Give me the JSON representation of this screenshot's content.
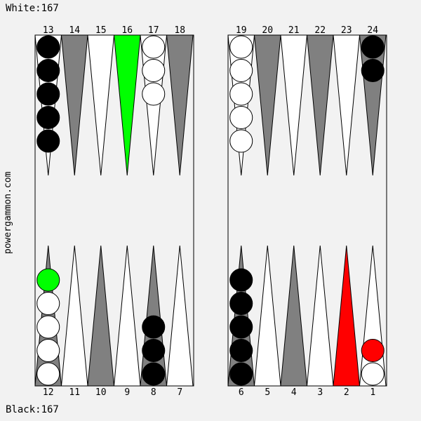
{
  "score_white": "White:167",
  "score_black": "Black:167",
  "site": "powergammon.com",
  "colors": {
    "board_bg": "#f2f2f2",
    "dark_point": "#808080",
    "light_point": "#ffffff",
    "highlight_from": "#00ff00",
    "highlight_to": "#ff0000",
    "checker_white": "#ffffff",
    "checker_black": "#000000"
  },
  "highlight": {
    "from_point": "16",
    "to_point": "2",
    "white_checker_moved_from_point": "12",
    "white_checker_moved_to_point": "1"
  },
  "points_top": [
    "13",
    "14",
    "15",
    "16",
    "17",
    "18",
    "19",
    "20",
    "21",
    "22",
    "23",
    "24"
  ],
  "points_bottom": [
    "12",
    "11",
    "10",
    "9",
    "8",
    "7",
    "6",
    "5",
    "4",
    "3",
    "2",
    "1"
  ],
  "checkers": [
    {
      "point": "13",
      "color": "black",
      "count": 5
    },
    {
      "point": "17",
      "color": "white",
      "count": 3
    },
    {
      "point": "19",
      "color": "white",
      "count": 5
    },
    {
      "point": "24",
      "color": "black",
      "count": 2
    },
    {
      "point": "12",
      "color": "white",
      "count": 5,
      "top_checker_highlight": "green"
    },
    {
      "point": "8",
      "color": "black",
      "count": 3
    },
    {
      "point": "6",
      "color": "black",
      "count": 5
    },
    {
      "point": "1",
      "color": "white",
      "count": 2,
      "top_checker_highlight": "red"
    }
  ]
}
